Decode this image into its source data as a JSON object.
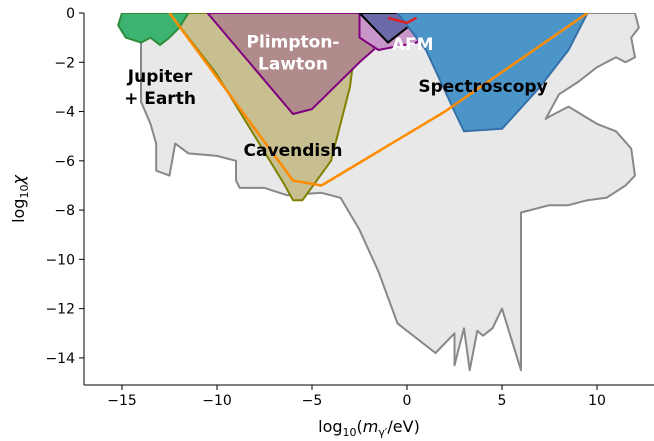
{
  "chart_data": {
    "type": "area",
    "xlabel": "log₁₀(m_γ′/eV)",
    "xlabel_parts": {
      "prefix": "log",
      "sub": "10",
      "open": "(",
      "italic": "m",
      "italic_sub": "γ′",
      "suffix": "/eV)"
    },
    "ylabel": "log₁₀χ",
    "ylabel_parts": {
      "prefix": "log",
      "sub": "10",
      "italic": "χ"
    },
    "xlim": [
      -17,
      13
    ],
    "ylim": [
      -15.1,
      0
    ],
    "xticks": [
      {
        "value": -15,
        "label": "−15"
      },
      {
        "value": -10,
        "label": "−10"
      },
      {
        "value": -5,
        "label": "−5"
      },
      {
        "value": 0,
        "label": "0"
      },
      {
        "value": 5,
        "label": "5"
      },
      {
        "value": 10,
        "label": "10"
      }
    ],
    "yticks": [
      {
        "value": 0,
        "label": "0"
      },
      {
        "value": -2,
        "label": "−2"
      },
      {
        "value": -4,
        "label": "−4"
      },
      {
        "value": -6,
        "label": "−6"
      },
      {
        "value": -8,
        "label": "−8"
      },
      {
        "value": -10,
        "label": "−10"
      },
      {
        "value": -12,
        "label": "−12"
      },
      {
        "value": -14,
        "label": "−14"
      }
    ],
    "grid": false,
    "legend": "none",
    "regions": [
      {
        "id": "existing-bounds",
        "fill": "#e8e8e8",
        "stroke": "#888888",
        "points": [
          [
            -14,
            0
          ],
          [
            -14,
            -3.6
          ],
          [
            -13.5,
            -4.5
          ],
          [
            -13.2,
            -5.3
          ],
          [
            -13.2,
            -6.4
          ],
          [
            -12.5,
            -6.6
          ],
          [
            -12.2,
            -5.3
          ],
          [
            -11.5,
            -5.7
          ],
          [
            -10,
            -5.8
          ],
          [
            -9,
            -6.0
          ],
          [
            -9,
            -6.8
          ],
          [
            -8.8,
            -7.1
          ],
          [
            -7.5,
            -7.1
          ],
          [
            -6.3,
            -7.4
          ],
          [
            -4.5,
            -7.3
          ],
          [
            -3.5,
            -7.5
          ],
          [
            -2.5,
            -8.8
          ],
          [
            -1.5,
            -10.5
          ],
          [
            -0.5,
            -12.6
          ],
          [
            1.5,
            -13.8
          ],
          [
            2.5,
            -13.0
          ],
          [
            2.5,
            -14.3
          ],
          [
            3.0,
            -12.8
          ],
          [
            3.3,
            -14.5
          ],
          [
            3.7,
            -12.9
          ],
          [
            4.0,
            -13.1
          ],
          [
            4.5,
            -12.8
          ],
          [
            5.0,
            -12.0
          ],
          [
            6.0,
            -14.5
          ],
          [
            6.0,
            -8.1
          ],
          [
            7.5,
            -7.8
          ],
          [
            8.5,
            -7.8
          ],
          [
            9.5,
            -7.6
          ],
          [
            10.5,
            -7.5
          ],
          [
            11.5,
            -7.0
          ],
          [
            12.0,
            -6.6
          ],
          [
            11.8,
            -5.5
          ],
          [
            11.0,
            -4.8
          ],
          [
            10.0,
            -4.5
          ],
          [
            8.5,
            -3.8
          ],
          [
            7.5,
            -4.2
          ],
          [
            7.3,
            -4.3
          ],
          [
            8.0,
            -3.3
          ],
          [
            9.0,
            -2.8
          ],
          [
            10.0,
            -2.2
          ],
          [
            11.0,
            -1.8
          ],
          [
            11.5,
            -2.0
          ],
          [
            12.0,
            -1.8
          ],
          [
            11.8,
            -1.0
          ],
          [
            12.2,
            -0.6
          ],
          [
            12.0,
            0
          ]
        ]
      },
      {
        "id": "cavendish",
        "fill": "#c7bf8f",
        "stroke": "#808000",
        "points": [
          [
            -12.5,
            0
          ],
          [
            -10,
            -2.5
          ],
          [
            -6.5,
            -6.9
          ],
          [
            -6,
            -7.6
          ],
          [
            -5.5,
            -7.6
          ],
          [
            -4,
            -6
          ],
          [
            -3,
            -3
          ],
          [
            -2.5,
            0
          ]
        ]
      },
      {
        "id": "plimpton-lawton",
        "fill": "#b18b8b",
        "stroke": "#800080",
        "points": [
          [
            -10.5,
            0
          ],
          [
            -6,
            -4.1
          ],
          [
            -5,
            -3.9
          ],
          [
            -2.5,
            -2
          ],
          [
            0,
            -0.3
          ],
          [
            1,
            0
          ]
        ]
      },
      {
        "id": "afm",
        "fill": "#c896c8",
        "stroke": "#800080",
        "points": [
          [
            -2.5,
            0
          ],
          [
            -2.5,
            -1.0
          ],
          [
            -1.5,
            -1.5
          ],
          [
            0.5,
            -1.2
          ],
          [
            2.5,
            0
          ]
        ]
      },
      {
        "id": "inner-dark",
        "fill": "#6a6aa8",
        "stroke": "#000000",
        "points": [
          [
            -2.5,
            0
          ],
          [
            -1,
            -1.2
          ],
          [
            1,
            0
          ]
        ]
      },
      {
        "id": "spectroscopy",
        "fill": "#4b95c8",
        "stroke": "#3570a8",
        "points": [
          [
            -0.5,
            0
          ],
          [
            1,
            -1.5
          ],
          [
            2.5,
            -4
          ],
          [
            3,
            -4.8
          ],
          [
            5,
            -4.7
          ],
          [
            7,
            -3
          ],
          [
            8.5,
            -1.5
          ],
          [
            9.5,
            0
          ]
        ]
      },
      {
        "id": "jupiter-earth",
        "fill": "#3cb371",
        "stroke": "#2e8b3a",
        "points": [
          [
            -15,
            0
          ],
          [
            -15.2,
            -0.5
          ],
          [
            -14.8,
            -1.0
          ],
          [
            -14,
            -1.2
          ],
          [
            -13.5,
            -1.0
          ],
          [
            -13,
            -1.3
          ],
          [
            -12.5,
            -1.0
          ],
          [
            -12,
            -0.6
          ],
          [
            -11.5,
            0
          ]
        ]
      }
    ],
    "lines": [
      {
        "id": "orange-line",
        "stroke": "#ff8c00",
        "points": [
          [
            -12.5,
            0
          ],
          [
            -6,
            -6.8
          ],
          [
            -4.5,
            -7
          ],
          [
            2,
            -4
          ],
          [
            9.5,
            0
          ]
        ]
      },
      {
        "id": "red-line",
        "stroke": "#e02020",
        "points": [
          [
            -1,
            -0.2
          ],
          [
            0,
            -0.4
          ],
          [
            0.5,
            -0.2
          ]
        ]
      }
    ],
    "labels": [
      {
        "id": "jupiter-earth",
        "lines": [
          "Jupiter",
          "+ Earth"
        ],
        "x": -13,
        "y": -2.8,
        "color": "#000000"
      },
      {
        "id": "plimpton-lawton",
        "lines": [
          "Plimpton-",
          "Lawton"
        ],
        "x": -6,
        "y": -1.4,
        "color": "#ffffff"
      },
      {
        "id": "afm",
        "lines": [
          "AFM"
        ],
        "x": 0.3,
        "y": -1.5,
        "color": "#ffffff"
      },
      {
        "id": "spectroscopy",
        "lines": [
          "Spectroscopy"
        ],
        "x": 4,
        "y": -3.2,
        "color": "#000000"
      },
      {
        "id": "cavendish",
        "lines": [
          "Cavendish"
        ],
        "x": -6,
        "y": -5.8,
        "color": "#000000"
      }
    ]
  }
}
